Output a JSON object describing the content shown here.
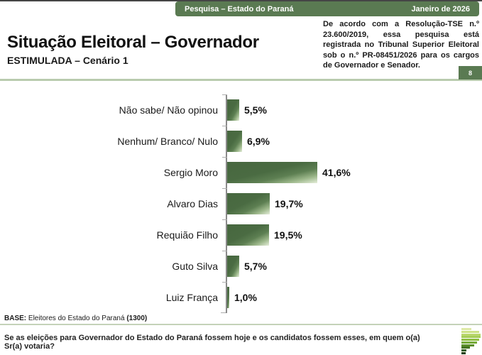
{
  "header": {
    "left": "Pesquisa – Estado do Paraná",
    "right": "Janeiro de 2026"
  },
  "title": "Situação Eleitoral – Governador",
  "subtitle": "ESTIMULADA – Cenário 1",
  "info_box": {
    "text": "De acordo com a Resolução-TSE n.º 23.600/2019, essa pesquisa está registrada no Tribunal Superior Eleitoral sob o n.º PR-08451/2026 para os cargos de Governador e Senador."
  },
  "page_number": "8",
  "chart_data": {
    "type": "bar",
    "orientation": "horizontal",
    "categories": [
      "Não sabe/ Não opinou",
      "Nenhum/ Branco/ Nulo",
      "Sergio Moro",
      "Alvaro Dias",
      "Requião Filho",
      "Guto Silva",
      "Luiz França"
    ],
    "values": [
      5.5,
      6.9,
      41.6,
      19.7,
      19.5,
      5.7,
      1.0
    ],
    "value_labels": [
      "5,5%",
      "6,9%",
      "41,6%",
      "19,7%",
      "19,5%",
      "5,7%",
      "1,0%"
    ],
    "xlim": [
      0,
      46
    ],
    "grid": false,
    "legend": false,
    "bar_color_dark": "#4a6b42",
    "bar_color_light": "#e6eedb"
  },
  "footer": {
    "base_label": "BASE:",
    "base_text": " Eleitores do Estado do Paraná ",
    "base_count": "(1300)",
    "question": "Se as eleições para Governador do Estado do Paraná fossem hoje e os candidatos fossem esses, em quem o(a) Sr(a) votaria?"
  },
  "colors": {
    "header_green": "#5a7a52",
    "divider_green": "#b9cbae",
    "bar_dark_green": "#4a6b42"
  }
}
